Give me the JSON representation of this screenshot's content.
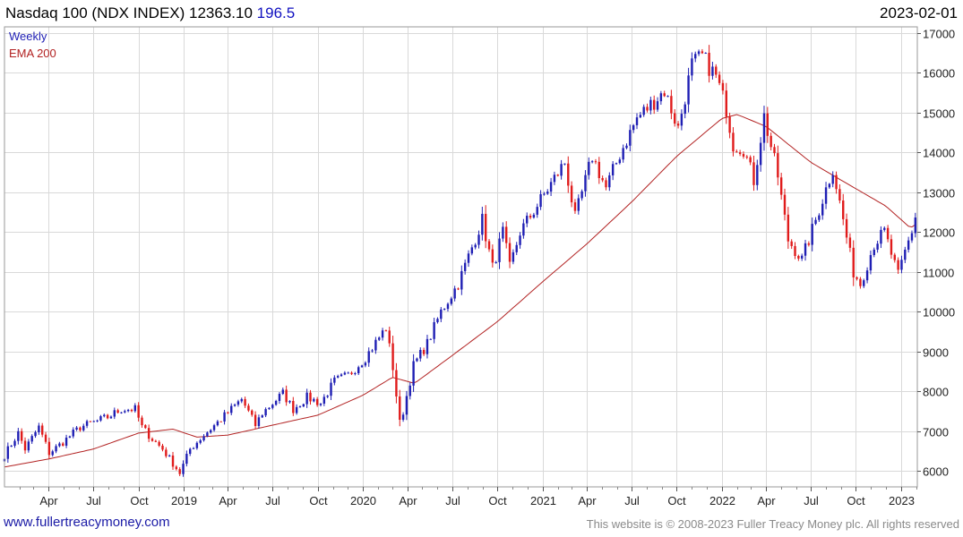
{
  "header": {
    "title": "Nasdaq 100 (NDX INDEX) 12363.10",
    "change": "196.5",
    "date": "2023-02-01"
  },
  "footer": {
    "link": "www.fullertreacymoney.com",
    "copyright": "This website is © 2008-2023 Fuller Treacy Money plc. All rights reserved"
  },
  "colors": {
    "up": "#1f1fb4",
    "down": "#e01b1b",
    "ema": "#b22222",
    "grid": "#d9d9d9"
  },
  "chart_data": {
    "type": "candlestick",
    "legend": [
      "Weekly",
      "EMA 200"
    ],
    "legend_position": "top-left",
    "grid": true,
    "y_axis_side": "right",
    "ylim": [
      5600,
      17150
    ],
    "y_ticks": [
      6000,
      7000,
      8000,
      9000,
      10000,
      11000,
      12000,
      13000,
      14000,
      15000,
      16000,
      17000
    ],
    "x_ticks": [
      "Apr",
      "Jul",
      "Oct",
      "2019",
      "Apr",
      "Jul",
      "Oct",
      "2020",
      "Apr",
      "Jul",
      "Oct",
      "2021",
      "Apr",
      "Jul",
      "Oct",
      "2022",
      "Apr",
      "Jul",
      "Oct",
      "2023"
    ],
    "x_range": [
      "2018-01-01",
      "2023-02-03"
    ],
    "weekly_close_anchors": [
      [
        "2018-01-01",
        6400
      ],
      [
        "2018-01-29",
        6950
      ],
      [
        "2018-02-12",
        6550
      ],
      [
        "2018-03-12",
        7100
      ],
      [
        "2018-04-02",
        6450
      ],
      [
        "2018-04-23",
        6650
      ],
      [
        "2018-06-04",
        7100
      ],
      [
        "2018-07-09",
        7250
      ],
      [
        "2018-07-30",
        7350
      ],
      [
        "2018-08-27",
        7550
      ],
      [
        "2018-09-24",
        7550
      ],
      [
        "2018-10-08",
        7100
      ],
      [
        "2018-10-29",
        6800
      ],
      [
        "2018-11-19",
        6550
      ],
      [
        "2018-12-24",
        5950
      ],
      [
        "2019-01-14",
        6550
      ],
      [
        "2019-02-11",
        6900
      ],
      [
        "2019-03-18",
        7300
      ],
      [
        "2019-04-29",
        7800
      ],
      [
        "2019-05-27",
        7150
      ],
      [
        "2019-06-10",
        7450
      ],
      [
        "2019-07-22",
        7950
      ],
      [
        "2019-08-12",
        7550
      ],
      [
        "2019-09-09",
        7850
      ],
      [
        "2019-10-07",
        7700
      ],
      [
        "2019-11-04",
        8250
      ],
      [
        "2019-12-02",
        8400
      ],
      [
        "2020-01-06",
        8850
      ],
      [
        "2020-02-17",
        9600
      ],
      [
        "2020-03-02",
        8600
      ],
      [
        "2020-03-16",
        7200
      ],
      [
        "2020-03-23",
        7500
      ],
      [
        "2020-04-13",
        8650
      ],
      [
        "2020-05-11",
        9200
      ],
      [
        "2020-06-08",
        10000
      ],
      [
        "2020-07-13",
        10700
      ],
      [
        "2020-08-31",
        12300
      ],
      [
        "2020-09-21",
        11100
      ],
      [
        "2020-10-12",
        12000
      ],
      [
        "2020-10-26",
        11100
      ],
      [
        "2020-11-16",
        12000
      ],
      [
        "2020-12-28",
        12800
      ],
      [
        "2021-02-15",
        13750
      ],
      [
        "2021-03-08",
        12350
      ],
      [
        "2021-04-12",
        13900
      ],
      [
        "2021-05-10",
        13100
      ],
      [
        "2021-06-07",
        13950
      ],
      [
        "2021-07-12",
        14850
      ],
      [
        "2021-09-06",
        15550
      ],
      [
        "2021-10-04",
        14600
      ],
      [
        "2021-11-01",
        16200
      ],
      [
        "2021-11-22",
        16400
      ],
      [
        "2021-12-20",
        15900
      ],
      [
        "2022-01-10",
        15100
      ],
      [
        "2022-01-24",
        14200
      ],
      [
        "2022-02-14",
        14100
      ],
      [
        "2022-03-07",
        13300
      ],
      [
        "2022-03-28",
        14900
      ],
      [
        "2022-04-25",
        13400
      ],
      [
        "2022-05-16",
        11800
      ],
      [
        "2022-06-13",
        11300
      ],
      [
        "2022-07-11",
        12300
      ],
      [
        "2022-08-15",
        13600
      ],
      [
        "2022-09-05",
        12300
      ],
      [
        "2022-09-26",
        11000
      ],
      [
        "2022-10-10",
        10700
      ],
      [
        "2022-11-07",
        11700
      ],
      [
        "2022-11-28",
        12000
      ],
      [
        "2022-12-26",
        10900
      ],
      [
        "2023-01-09",
        11500
      ],
      [
        "2023-02-01",
        12363
      ]
    ],
    "ema_200_anchors": [
      [
        "2018-01-01",
        6100
      ],
      [
        "2018-04-01",
        6300
      ],
      [
        "2018-07-01",
        6550
      ],
      [
        "2018-10-01",
        6950
      ],
      [
        "2018-12-10",
        7050
      ],
      [
        "2019-01-28",
        6850
      ],
      [
        "2019-04-01",
        6900
      ],
      [
        "2019-07-01",
        7150
      ],
      [
        "2019-10-01",
        7400
      ],
      [
        "2020-01-01",
        7900
      ],
      [
        "2020-03-01",
        8350
      ],
      [
        "2020-04-15",
        8200
      ],
      [
        "2020-07-01",
        8900
      ],
      [
        "2020-10-01",
        9750
      ],
      [
        "2021-01-01",
        10750
      ],
      [
        "2021-04-01",
        11700
      ],
      [
        "2021-07-01",
        12750
      ],
      [
        "2021-10-01",
        13900
      ],
      [
        "2022-01-01",
        14850
      ],
      [
        "2022-02-01",
        14950
      ],
      [
        "2022-04-01",
        14650
      ],
      [
        "2022-07-01",
        13750
      ],
      [
        "2022-09-01",
        13300
      ],
      [
        "2022-12-01",
        12650
      ],
      [
        "2023-01-20",
        12100
      ],
      [
        "2023-02-01",
        12200
      ]
    ]
  }
}
